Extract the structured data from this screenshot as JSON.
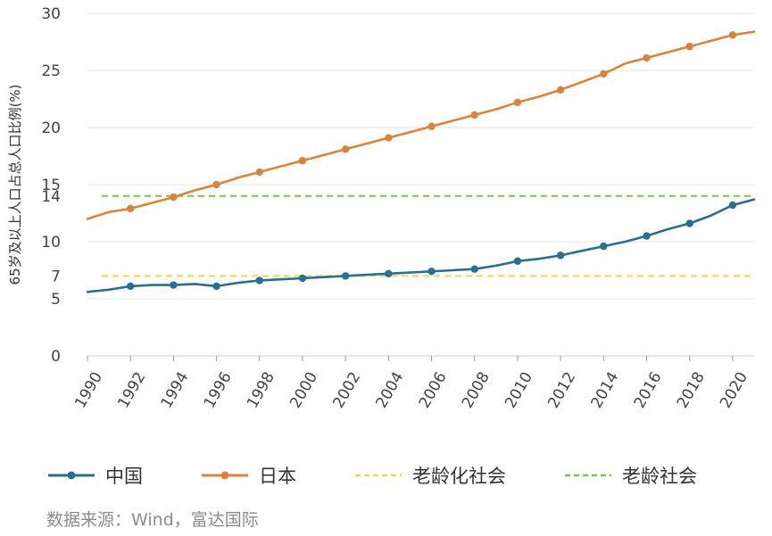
{
  "chart_data": {
    "type": "line",
    "ylabel": "65岁及以上人口占总人口比例(%)",
    "ylim": [
      0,
      30
    ],
    "yticks": [
      0,
      5,
      7,
      10,
      14,
      15,
      20,
      25,
      30
    ],
    "xlim": [
      1990,
      2021
    ],
    "xticks": [
      "1990",
      "1992",
      "1994",
      "1996",
      "1998",
      "2000",
      "2002",
      "2004",
      "2006",
      "2008",
      "2010",
      "2012",
      "2014",
      "2016",
      "2018",
      "2020"
    ],
    "grid": true,
    "series": [
      {
        "name": "中国",
        "color": "#2a6f8f",
        "marker": "circle",
        "x": [
          1990,
          1991,
          1992,
          1993,
          1994,
          1995,
          1996,
          1997,
          1998,
          1999,
          2000,
          2001,
          2002,
          2003,
          2004,
          2005,
          2006,
          2007,
          2008,
          2009,
          2010,
          2011,
          2012,
          2013,
          2014,
          2015,
          2016,
          2017,
          2018,
          2019,
          2020,
          2021
        ],
        "y": [
          5.6,
          5.8,
          6.1,
          6.2,
          6.2,
          6.3,
          6.1,
          6.4,
          6.6,
          6.7,
          6.8,
          6.9,
          7.0,
          7.1,
          7.2,
          7.3,
          7.4,
          7.5,
          7.6,
          7.9,
          8.3,
          8.5,
          8.8,
          9.2,
          9.6,
          10.0,
          10.5,
          11.1,
          11.6,
          12.3,
          13.2,
          13.7
        ],
        "marked_x": [
          1992,
          1994,
          1996,
          1998,
          2000,
          2002,
          2004,
          2006,
          2008,
          2010,
          2012,
          2014,
          2016,
          2018,
          2020
        ]
      },
      {
        "name": "日本",
        "color": "#d9843e",
        "marker": "circle",
        "x": [
          1990,
          1991,
          1992,
          1993,
          1994,
          1995,
          1996,
          1997,
          1998,
          1999,
          2000,
          2001,
          2002,
          2003,
          2004,
          2005,
          2006,
          2007,
          2008,
          2009,
          2010,
          2011,
          2012,
          2013,
          2014,
          2015,
          2016,
          2017,
          2018,
          2019,
          2020,
          2021
        ],
        "y": [
          12.0,
          12.6,
          12.9,
          13.4,
          13.9,
          14.5,
          15.0,
          15.6,
          16.1,
          16.6,
          17.1,
          17.6,
          18.1,
          18.6,
          19.1,
          19.6,
          20.1,
          20.6,
          21.1,
          21.6,
          22.2,
          22.7,
          23.3,
          24.0,
          24.7,
          25.6,
          26.1,
          26.6,
          27.1,
          27.6,
          28.1,
          28.4
        ],
        "marked_x": [
          1992,
          1994,
          1996,
          1998,
          2000,
          2002,
          2004,
          2006,
          2008,
          2010,
          2012,
          2014,
          2016,
          2018,
          2020
        ]
      },
      {
        "name": "老龄化社会",
        "color": "#e6d94a",
        "style": "dashed",
        "y_constant": 7
      },
      {
        "name": "老龄社会",
        "color": "#7ec04a",
        "style": "dashed",
        "y_constant": 14
      }
    ],
    "legend_position": "bottom",
    "source_note": "数据来源：Wind，富达国际"
  }
}
